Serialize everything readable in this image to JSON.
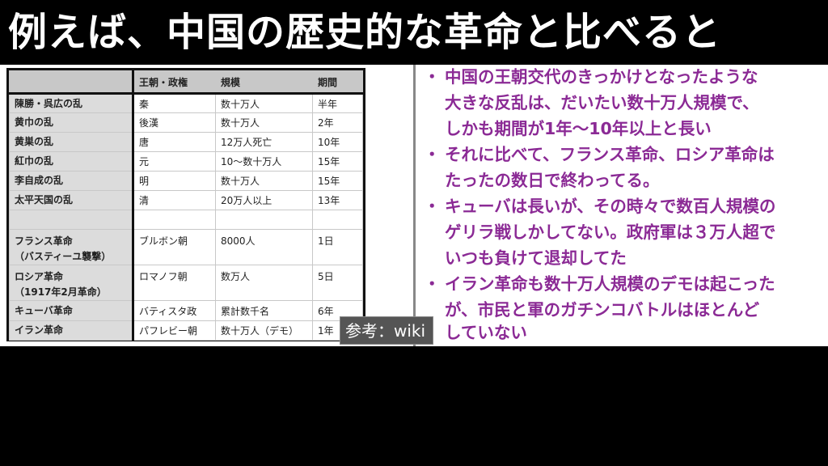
{
  "title": "例えば、中国の歴史的な革命と比べると",
  "table": {
    "headers": [
      "",
      "王朝・政権",
      "規模",
      "期間"
    ],
    "rows": [
      [
        "陳勝・呉広の乱",
        "秦",
        "数十万人",
        "半年"
      ],
      [
        "黄巾の乱",
        "後漢",
        "数十万人",
        "2年"
      ],
      [
        "黄巣の乱",
        "唐",
        "12万人死亡",
        "10年"
      ],
      [
        "紅巾の乱",
        "元",
        "10〜数十万人",
        "15年"
      ],
      [
        "李自成の乱",
        "明",
        "数十万人",
        "15年"
      ],
      [
        "太平天国の乱",
        "清",
        "20万人以上",
        "13年"
      ],
      [
        "",
        "",
        "",
        ""
      ],
      [
        "フランス革命\n（バスティーユ襲撃）",
        "ブルボン朝",
        "8000人",
        "1日"
      ],
      [
        "ロシア革命\n（1917年2月革命）",
        "ロマノフ朝",
        "数万人",
        "5日"
      ],
      [
        "キューバ革命",
        "バティスタ政",
        "累計数千名",
        "6年"
      ],
      [
        "イラン革命",
        "パフレビー朝",
        "数十万人（デモ）",
        "1年"
      ]
    ]
  },
  "reference": "参考：wiki",
  "bullets": [
    [
      "中国の王朝交代のきっかけとなったような",
      "大きな反乱は、だいたい数十万人規模で、",
      "しかも期間が1年〜10年以上と長い"
    ],
    [
      "それに比べて、フランス革命、ロシア革命は",
      "たったの数日で終わってる。"
    ],
    [
      "キューバは長いが、その時々で数百人規模の",
      "ゲリラ戦しかしてない。政府軍は３万人超で",
      "いつも負けて退却してた"
    ],
    [
      "イラン革命も数十万人規模のデモは起こった",
      "が、市民と軍のガチンコバトルはほとんど",
      "していない"
    ]
  ],
  "bullet_mark": "・",
  "colors": {
    "accent": "#8b2a95",
    "header_bg": "#c8c8c8",
    "background": "#000000"
  }
}
